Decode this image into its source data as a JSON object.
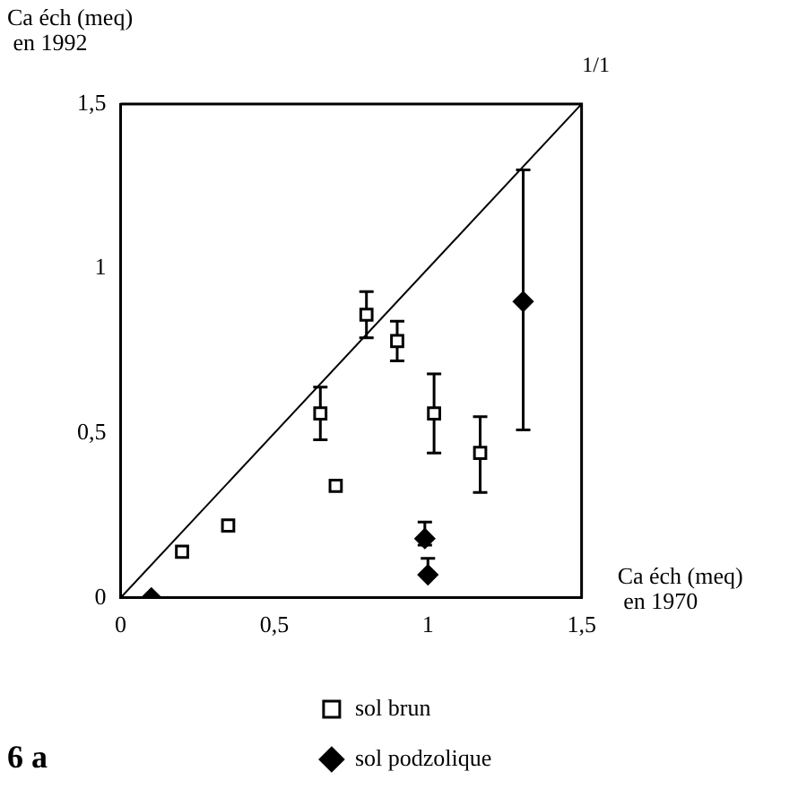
{
  "chart_data": {
    "type": "scatter",
    "xlabel": "Ca éch (meq)\n en 1970",
    "ylabel": "Ca éch (meq)\n en 1992",
    "xlim": [
      0,
      1.5
    ],
    "ylim": [
      0,
      1.5
    ],
    "xticks": [
      0,
      {
        "value": 0.5,
        "label": "0,5"
      },
      1,
      {
        "value": 1.5,
        "label": "1,5"
      }
    ],
    "yticks": [
      0,
      {
        "value": 0.5,
        "label": "0,5"
      },
      1,
      {
        "value": 1.5,
        "label": "1,5"
      }
    ],
    "grid": false,
    "legend": "bottom",
    "series": [
      {
        "name": "sol brun",
        "color": "#000000",
        "marker": "square",
        "x": [
          0.2,
          0.35,
          0.65,
          0.7,
          0.8,
          0.9,
          1.02,
          1.17
        ],
        "values": [
          0.14,
          0.22,
          0.56,
          0.34,
          0.86,
          0.78,
          0.56,
          0.44
        ],
        "errors": [
          null,
          null,
          [
            0.48,
            0.64
          ],
          null,
          [
            0.79,
            0.93
          ],
          [
            0.72,
            0.84
          ],
          [
            0.44,
            0.68
          ],
          [
            0.32,
            0.55
          ]
        ]
      },
      {
        "name": "sol podzolique",
        "color": "#000000",
        "marker": "diamond",
        "x": [
          0.1,
          0.99,
          1.0,
          1.31
        ],
        "values": [
          0,
          0.18,
          0.07,
          0.9
        ],
        "errors": [
          null,
          [
            0.16,
            0.23
          ],
          [
            0.07,
            0.12
          ],
          [
            0.51,
            1.3
          ]
        ]
      },
      {
        "type": "line",
        "color": "#000000",
        "marker": "none",
        "x": [
          0,
          1.5
        ],
        "values": [
          0,
          1.5
        ]
      }
    ],
    "annotations": [
      {
        "text": "1/1",
        "x": 1.5,
        "y": 1.5
      },
      "6 a"
    ]
  }
}
